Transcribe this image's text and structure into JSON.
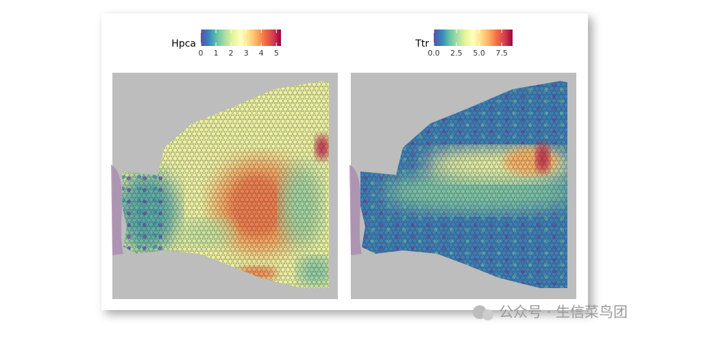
{
  "panels": [
    {
      "legend_title": "Hpca",
      "colorbar": {
        "lim": [
          0,
          5.3
        ],
        "ticks": [
          0,
          1,
          2,
          3,
          4,
          5
        ]
      }
    },
    {
      "legend_title": "Ttr",
      "colorbar": {
        "lim": [
          0,
          8.7
        ],
        "ticks": [
          {
            "value": 0,
            "label": "0.0"
          },
          {
            "value": 2.5,
            "label": "2.5"
          },
          {
            "value": 5,
            "label": "5.0"
          },
          {
            "value": 7.5,
            "label": "7.5"
          }
        ]
      }
    }
  ],
  "watermark": "公众号 · 生信菜鸟团"
}
